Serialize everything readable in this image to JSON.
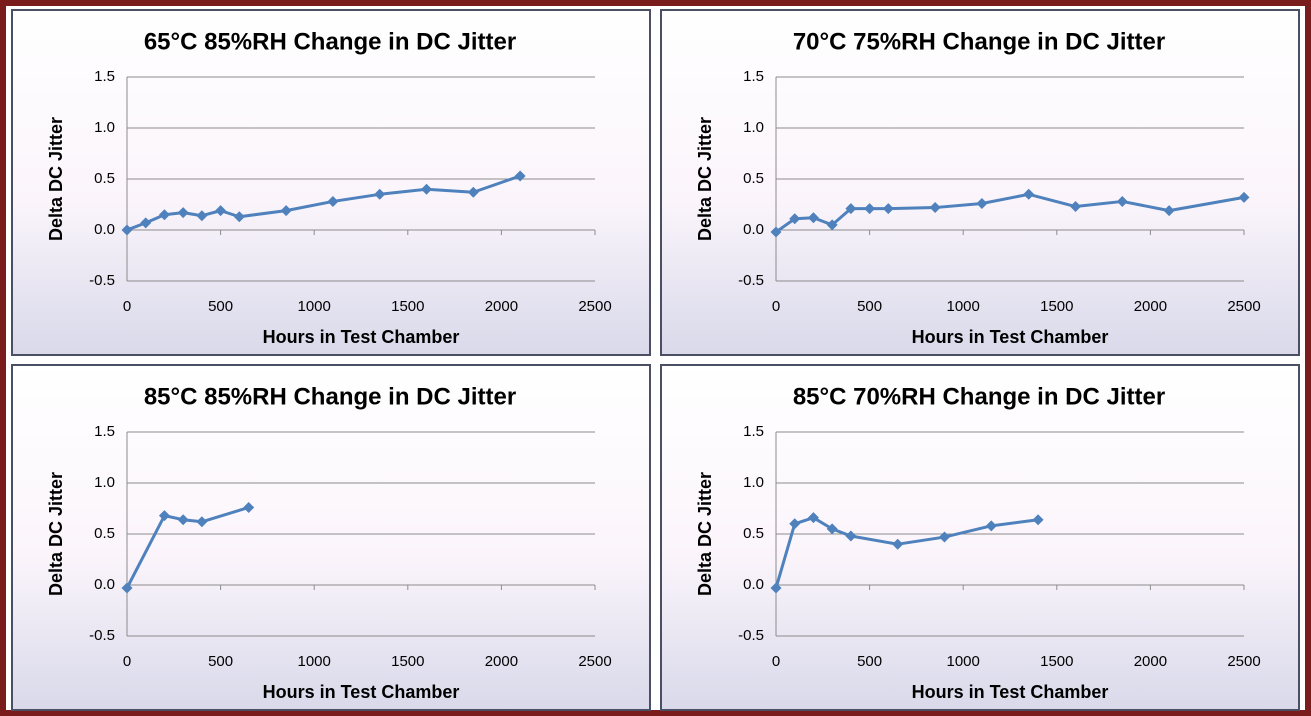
{
  "chart_data": [
    {
      "type": "line",
      "title": "65°C 85%RH Change in DC Jitter",
      "xlabel": "Hours in Test Chamber",
      "ylabel": "Delta DC Jitter",
      "x": [
        0,
        100,
        200,
        300,
        400,
        500,
        600,
        850,
        1100,
        1350,
        1600,
        1850,
        2100
      ],
      "values": [
        0.0,
        0.07,
        0.15,
        0.17,
        0.14,
        0.19,
        0.13,
        0.19,
        0.28,
        0.35,
        0.4,
        0.37,
        0.53
      ],
      "color": "#4f81bd",
      "xlim": [
        0,
        2500
      ],
      "xticks": [
        0,
        500,
        1000,
        1500,
        2000,
        2500
      ],
      "ylim": [
        -0.5,
        1.5
      ],
      "yticks": [
        -0.5,
        {
          "value": 0,
          "label": "0.0"
        },
        0.5,
        {
          "value": 1,
          "label": "1.0"
        },
        1.5
      ],
      "grid": true
    },
    {
      "type": "line",
      "title": "70°C 75%RH Change in DC Jitter",
      "xlabel": "Hours in Test Chamber",
      "ylabel": "Delta DC Jitter",
      "x": [
        0,
        100,
        200,
        300,
        400,
        500,
        600,
        850,
        1100,
        1350,
        1600,
        1850,
        2100,
        2500
      ],
      "values": [
        -0.02,
        0.11,
        0.12,
        0.05,
        0.21,
        0.21,
        0.21,
        0.22,
        0.26,
        0.35,
        0.23,
        0.28,
        0.19,
        0.32
      ],
      "color": "#4f81bd",
      "xlim": [
        0,
        2500
      ],
      "xticks": [
        0,
        500,
        1000,
        1500,
        2000,
        2500
      ],
      "ylim": [
        -0.5,
        1.5
      ],
      "yticks": [
        -0.5,
        {
          "value": 0,
          "label": "0.0"
        },
        0.5,
        {
          "value": 1,
          "label": "1.0"
        },
        1.5
      ],
      "grid": true
    },
    {
      "type": "line",
      "title": "85°C 85%RH Change in DC Jitter",
      "xlabel": "Hours in Test Chamber",
      "ylabel": "Delta DC Jitter",
      "x": [
        0,
        200,
        300,
        400,
        650
      ],
      "values": [
        -0.03,
        0.68,
        0.64,
        0.62,
        0.76
      ],
      "color": "#4f81bd",
      "xlim": [
        0,
        2500
      ],
      "xticks": [
        0,
        500,
        1000,
        1500,
        2000,
        2500
      ],
      "ylim": [
        -0.5,
        1.5
      ],
      "yticks": [
        -0.5,
        {
          "value": 0,
          "label": "0.0"
        },
        0.5,
        {
          "value": 1,
          "label": "1.0"
        },
        1.5
      ],
      "grid": true
    },
    {
      "type": "line",
      "title": "85°C 70%RH Change in DC Jitter",
      "xlabel": "Hours in Test Chamber",
      "ylabel": "Delta DC Jitter",
      "x": [
        0,
        100,
        200,
        300,
        400,
        650,
        900,
        1150,
        1400
      ],
      "values": [
        -0.03,
        0.6,
        0.66,
        0.55,
        0.48,
        0.4,
        0.47,
        0.58,
        0.64
      ],
      "color": "#4f81bd",
      "xlim": [
        0,
        2500
      ],
      "xticks": [
        0,
        500,
        1000,
        1500,
        2000,
        2500
      ],
      "ylim": [
        -0.5,
        1.5
      ],
      "yticks": [
        -0.5,
        {
          "value": 0,
          "label": "0.0"
        },
        0.5,
        {
          "value": 1,
          "label": "1.0"
        },
        1.5
      ],
      "grid": true
    }
  ]
}
